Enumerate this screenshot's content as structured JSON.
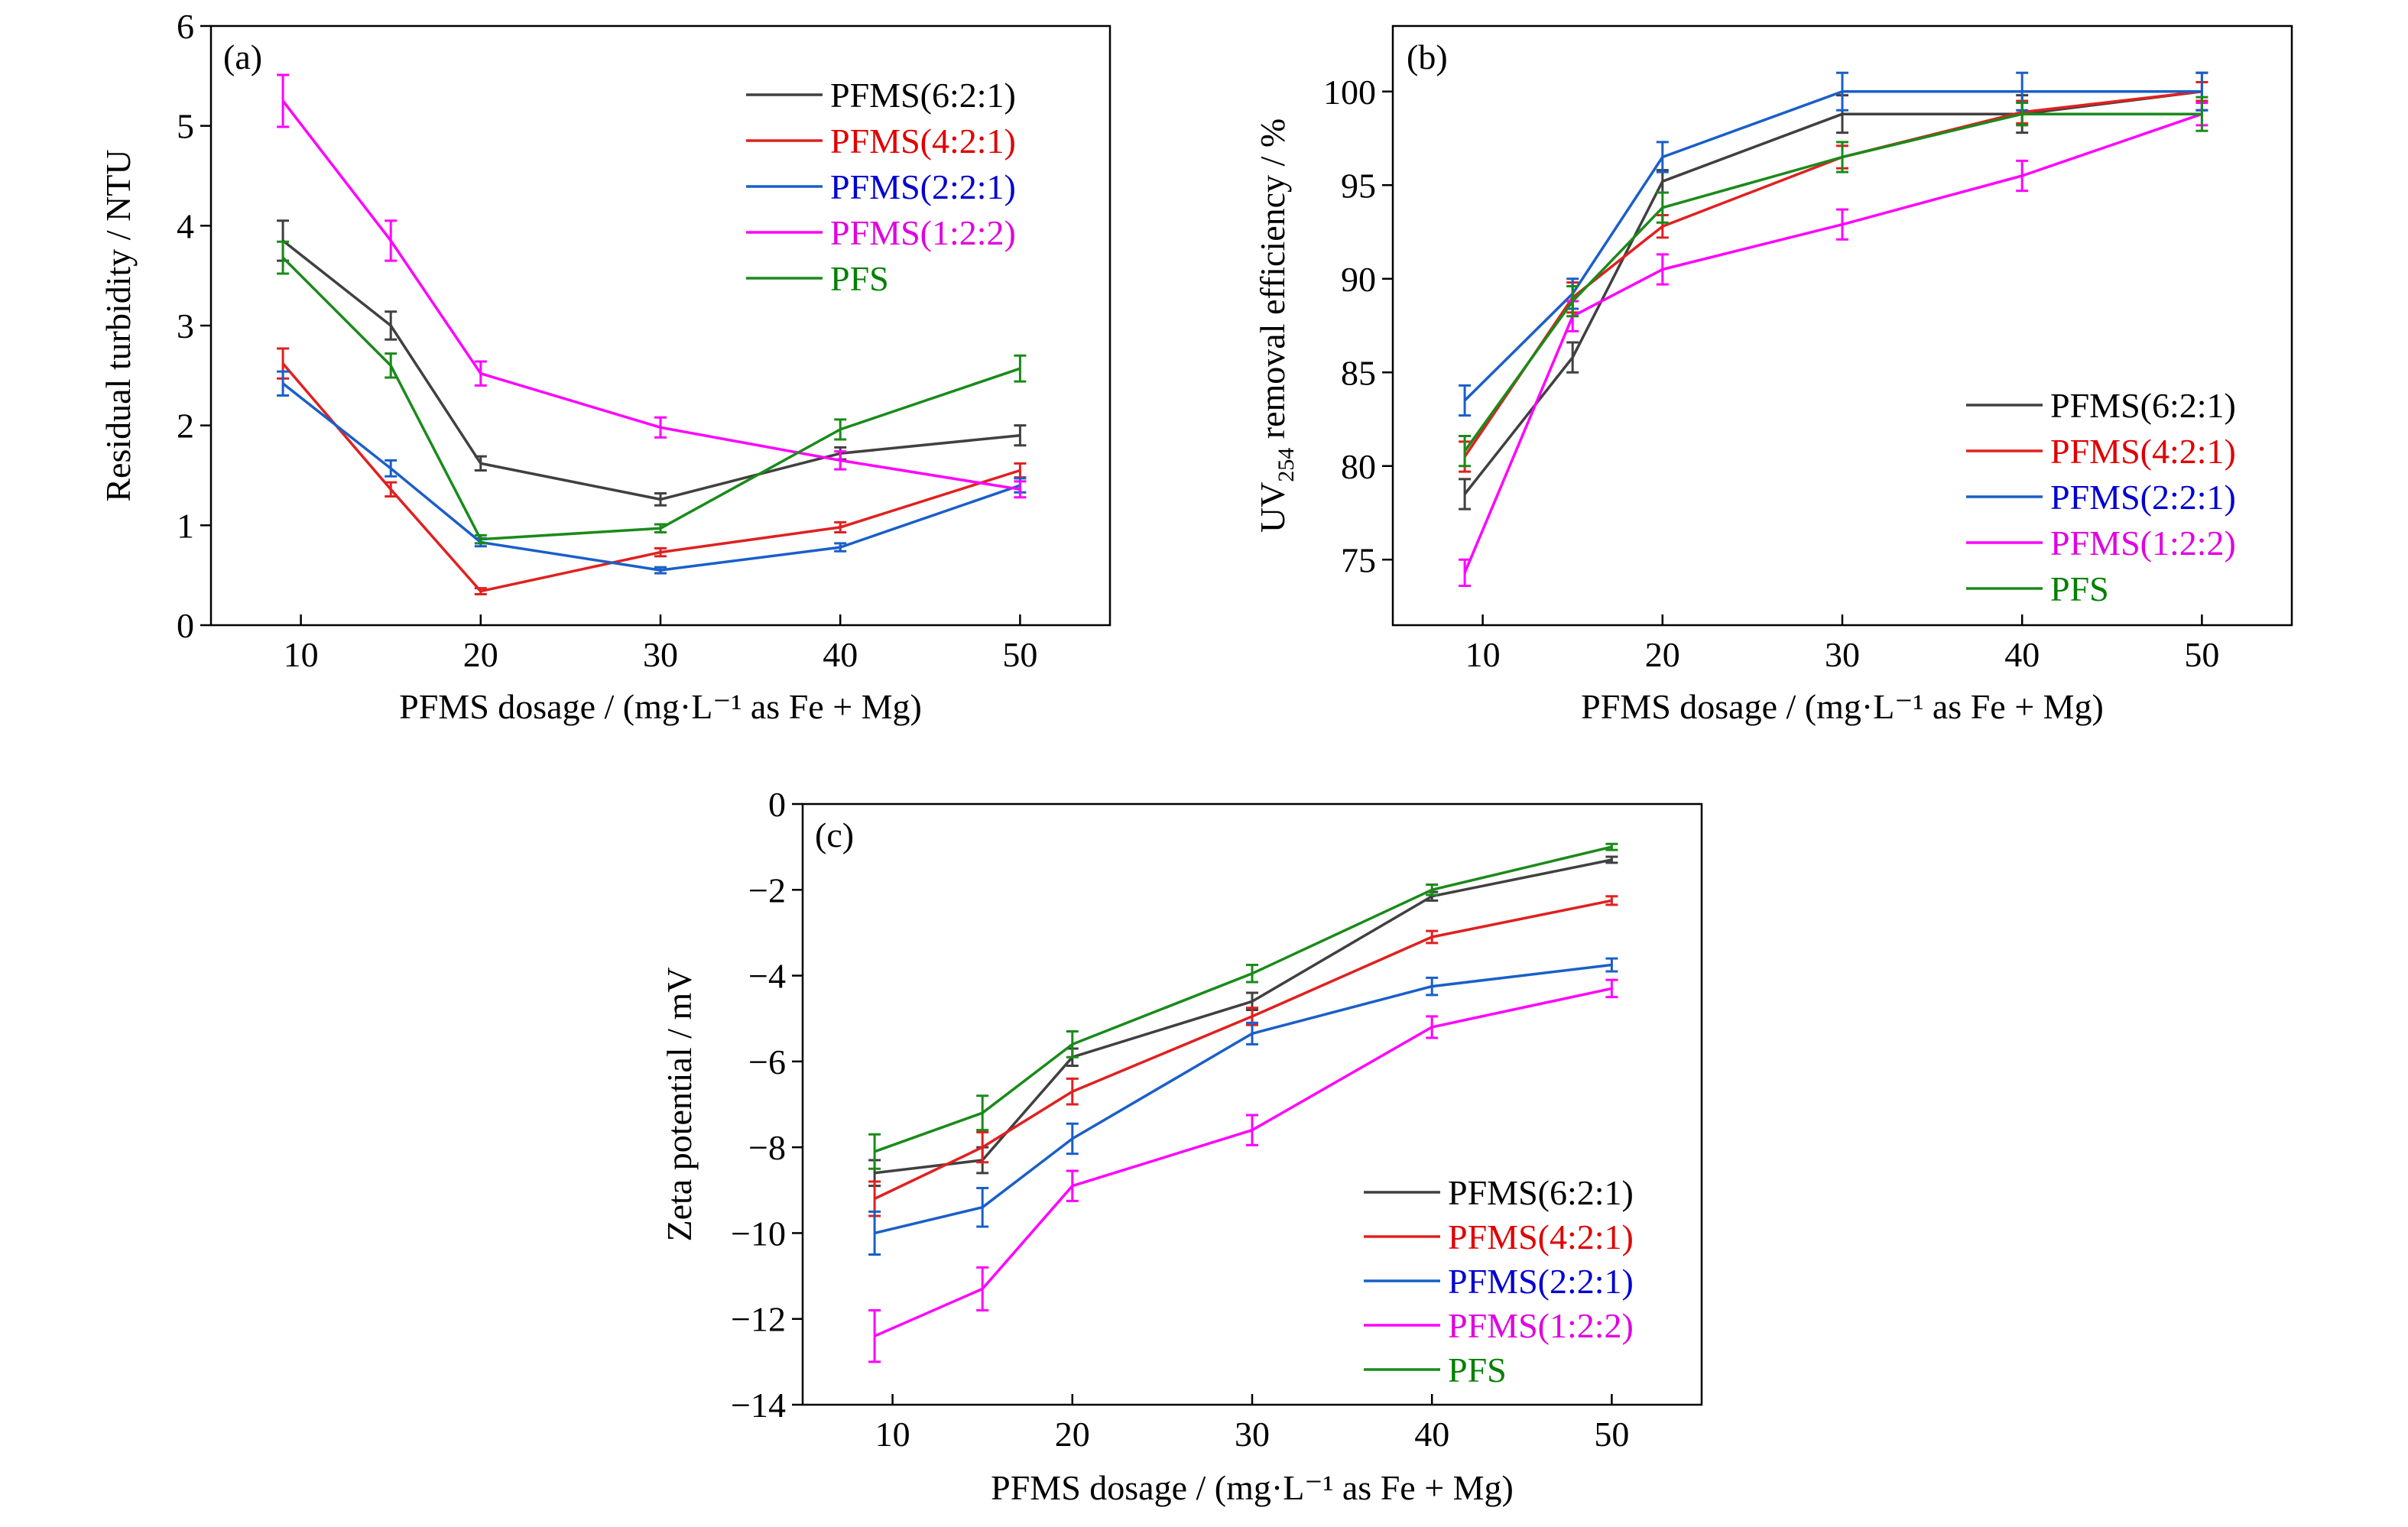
{
  "legend_colors": {
    "PFMS(6:2:1)": "#404040",
    "PFMS(4:2:1)": "#e02020",
    "PFMS(2:2:1)": "#1a5fc8",
    "PFMS(1:2:2)": "#ff00ff",
    "PFS": "#1a8a1a"
  },
  "legend_text_colors": {
    "PFMS(6:2:1)": "#000000",
    "PFMS(4:2:1)": "#e00000",
    "PFMS(2:2:1)": "#0000d0",
    "PFMS(1:2:2)": "#e000e0",
    "PFS": "#008000"
  },
  "chart_data": [
    {
      "type": "line",
      "panel_label": "(a)",
      "xlabel": "PFMS dosage / (mg·L⁻¹ as Fe + Mg)",
      "ylabel": "Residual turbidity / NTU",
      "x": [
        9,
        15,
        20,
        30,
        40,
        50
      ],
      "xlim": [
        5,
        55
      ],
      "ylim": [
        0,
        6
      ],
      "xticks": [
        10,
        20,
        30,
        40,
        50
      ],
      "yticks": [
        0,
        1,
        2,
        3,
        4,
        5,
        6
      ],
      "legend_position": "top-right",
      "grid": false,
      "series": [
        {
          "name": "PFMS(6:2:1)",
          "values": [
            3.85,
            3.0,
            1.62,
            1.26,
            1.72,
            1.9
          ],
          "errors": [
            0.2,
            0.14,
            0.07,
            0.06,
            0.06,
            0.1
          ]
        },
        {
          "name": "PFMS(4:2:1)",
          "values": [
            2.62,
            1.36,
            0.34,
            0.73,
            0.98,
            1.55
          ],
          "errors": [
            0.15,
            0.07,
            0.03,
            0.04,
            0.05,
            0.07
          ]
        },
        {
          "name": "PFMS(2:2:1)",
          "values": [
            2.42,
            1.57,
            0.83,
            0.55,
            0.78,
            1.4
          ],
          "errors": [
            0.12,
            0.08,
            0.04,
            0.03,
            0.04,
            0.07
          ]
        },
        {
          "name": "PFMS(1:2:2)",
          "values": [
            5.25,
            3.85,
            2.52,
            1.98,
            1.65,
            1.36
          ],
          "errors": [
            0.26,
            0.2,
            0.12,
            0.1,
            0.09,
            0.08
          ]
        },
        {
          "name": "PFS",
          "values": [
            3.68,
            2.6,
            0.86,
            0.97,
            1.96,
            2.57
          ],
          "errors": [
            0.16,
            0.12,
            0.04,
            0.04,
            0.1,
            0.13
          ]
        }
      ]
    },
    {
      "type": "line",
      "panel_label": "(b)",
      "xlabel": "PFMS dosage / (mg·L⁻¹ as Fe + Mg)",
      "ylabel_main": "UV",
      "ylabel_sub": "254",
      "ylabel_rest": " removal efficiency / %",
      "x": [
        9,
        15,
        20,
        30,
        40,
        50
      ],
      "xlim": [
        5,
        55
      ],
      "ylim": [
        71.5,
        103.5
      ],
      "xticks": [
        10,
        20,
        30,
        40,
        50
      ],
      "yticks": [
        75,
        80,
        85,
        90,
        95,
        100
      ],
      "legend_position": "bottom-right",
      "grid": false,
      "series": [
        {
          "name": "PFMS(6:2:1)",
          "values": [
            78.5,
            85.8,
            95.2,
            98.8,
            98.8,
            100.0
          ],
          "errors": [
            0.8,
            0.8,
            0.6,
            1.0,
            1.0,
            1.0
          ]
        },
        {
          "name": "PFMS(4:2:1)",
          "values": [
            80.5,
            89.0,
            92.8,
            96.5,
            98.9,
            100.0
          ],
          "errors": [
            0.8,
            0.8,
            0.6,
            0.6,
            0.6,
            0.5
          ]
        },
        {
          "name": "PFMS(2:2:1)",
          "values": [
            83.5,
            89.2,
            96.5,
            100.0,
            100.0,
            100.0
          ],
          "errors": [
            0.8,
            0.8,
            0.8,
            1.0,
            1.0,
            1.0
          ]
        },
        {
          "name": "PFMS(1:2:2)",
          "values": [
            74.3,
            88.0,
            90.5,
            92.9,
            95.5,
            98.8
          ],
          "errors": [
            0.7,
            0.8,
            0.8,
            0.8,
            0.8,
            0.6
          ]
        },
        {
          "name": "PFS",
          "values": [
            80.8,
            88.8,
            93.8,
            96.5,
            98.8,
            98.8
          ],
          "errors": [
            0.8,
            0.8,
            0.8,
            0.8,
            0.6,
            0.9
          ]
        }
      ]
    },
    {
      "type": "line",
      "panel_label": "(c)",
      "xlabel": "PFMS dosage / (mg·L⁻¹ as Fe + Mg)",
      "ylabel": "Zeta potential / mV",
      "x": [
        9,
        15,
        20,
        30,
        40,
        50
      ],
      "xlim": [
        5,
        55
      ],
      "ylim": [
        -14,
        0
      ],
      "xticks": [
        10,
        20,
        30,
        40,
        50
      ],
      "yticks": [
        0,
        -2,
        -4,
        -6,
        -8,
        -10,
        -12,
        -14
      ],
      "legend_position": "bottom-right",
      "grid": false,
      "series": [
        {
          "name": "PFMS(6:2:1)",
          "values": [
            -8.6,
            -8.3,
            -5.9,
            -4.6,
            -2.15,
            -1.3
          ],
          "errors": [
            0.3,
            0.3,
            0.2,
            0.2,
            0.1,
            0.07
          ]
        },
        {
          "name": "PFMS(4:2:1)",
          "values": [
            -9.2,
            -8.0,
            -6.7,
            -4.95,
            -3.1,
            -2.25
          ],
          "errors": [
            0.4,
            0.35,
            0.3,
            0.2,
            0.14,
            0.1
          ]
        },
        {
          "name": "PFMS(2:2:1)",
          "values": [
            -10.0,
            -9.4,
            -7.8,
            -5.35,
            -4.25,
            -3.75
          ],
          "errors": [
            0.5,
            0.45,
            0.35,
            0.25,
            0.2,
            0.15
          ]
        },
        {
          "name": "PFMS(1:2:2)",
          "values": [
            -12.4,
            -11.3,
            -8.9,
            -7.6,
            -5.2,
            -4.3
          ],
          "errors": [
            0.6,
            0.5,
            0.35,
            0.35,
            0.25,
            0.2
          ]
        },
        {
          "name": "PFS",
          "values": [
            -8.1,
            -7.2,
            -5.6,
            -3.95,
            -2.0,
            -1.0
          ],
          "errors": [
            0.4,
            0.4,
            0.3,
            0.2,
            0.12,
            0.07
          ]
        }
      ]
    }
  ]
}
